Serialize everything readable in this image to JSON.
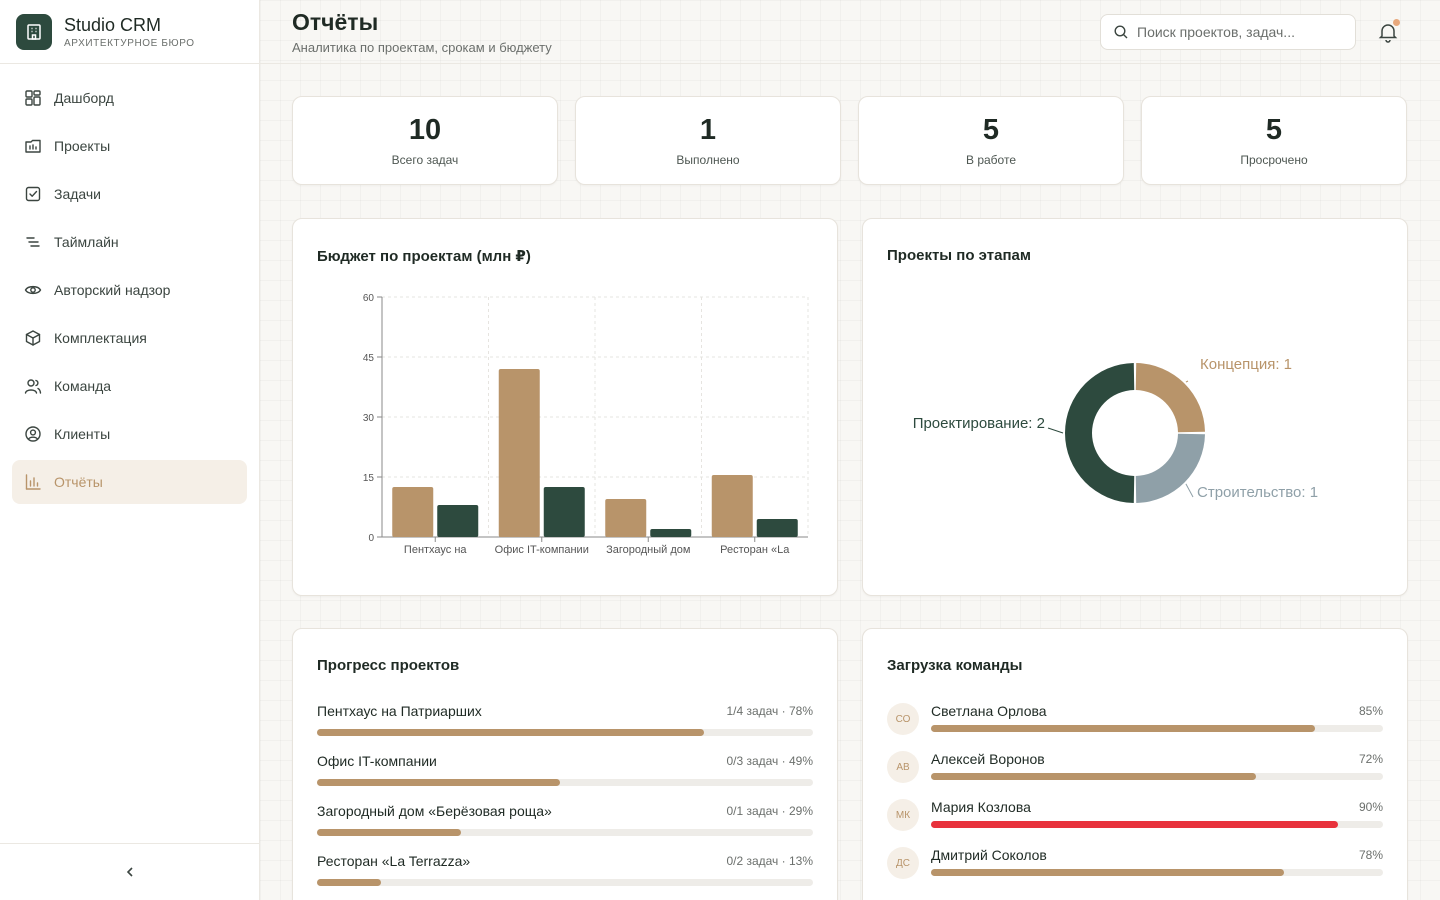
{
  "colors": {
    "accent": "#b8946a",
    "primary": "#2d4a3e",
    "slate": "#8fa0a8",
    "danger": "#e8323c",
    "accent_bg": "#f5efe7"
  },
  "brand": {
    "name": "Studio CRM",
    "subtitle": "АРХИТЕКТУРНОЕ БЮРО"
  },
  "sidebar": {
    "items": [
      {
        "label": "Дашборд",
        "icon": "dashboard-icon",
        "active": false
      },
      {
        "label": "Проекты",
        "icon": "folder-icon",
        "active": false
      },
      {
        "label": "Задачи",
        "icon": "checkbox-icon",
        "active": false
      },
      {
        "label": "Таймлайн",
        "icon": "timeline-icon",
        "active": false
      },
      {
        "label": "Авторский надзор",
        "icon": "eye-icon",
        "active": false
      },
      {
        "label": "Комплектация",
        "icon": "package-icon",
        "active": false
      },
      {
        "label": "Команда",
        "icon": "users-icon",
        "active": false
      },
      {
        "label": "Клиенты",
        "icon": "user-circle-icon",
        "active": false
      },
      {
        "label": "Отчёты",
        "icon": "bar-chart-icon",
        "active": true
      }
    ],
    "collapse_icon": "chevron-left-icon"
  },
  "header": {
    "title": "Отчёты",
    "subtitle": "Аналитика по проектам, срокам и бюджету",
    "search_placeholder": "Поиск проектов, задач..."
  },
  "stats": [
    {
      "value": "10",
      "label": "Всего задач"
    },
    {
      "value": "1",
      "label": "Выполнено"
    },
    {
      "value": "5",
      "label": "В работе"
    },
    {
      "value": "5",
      "label": "Просрочено"
    }
  ],
  "budget_card": {
    "title": "Бюджет по проектам (млн ₽)"
  },
  "stages_card": {
    "title": "Проекты по этапам"
  },
  "chart_data": [
    {
      "type": "bar",
      "title": "Бюджет по проектам (млн ₽)",
      "categories": [
        "Пентхаус на",
        "Офис IT-компании",
        "Загородный дом",
        "Ресторан «La"
      ],
      "series": [
        {
          "color": "#b8946a",
          "values": [
            12.5,
            42,
            9.5,
            15.5
          ]
        },
        {
          "color": "#2d4a3e",
          "values": [
            8,
            12.5,
            2,
            4.5
          ]
        }
      ],
      "yticks": [
        0,
        15,
        30,
        45,
        60
      ],
      "ylim": [
        0,
        60
      ],
      "grid": true
    },
    {
      "type": "pie",
      "title": "Проекты по этапам",
      "donut": true,
      "slices": [
        {
          "label": "Концепция: 1",
          "value": 1,
          "color": "#b8946a"
        },
        {
          "label": "Строительство: 1",
          "value": 1,
          "color": "#8fa0a8"
        },
        {
          "label": "Проектирование: 2",
          "value": 2,
          "color": "#2d4a3e"
        }
      ]
    }
  ],
  "progress": {
    "title": "Прогресс проектов",
    "items": [
      {
        "name": "Пентхаус на Патриарших",
        "meta": "1/4 задач · 78%",
        "pct": 78
      },
      {
        "name": "Офис IT-компании",
        "meta": "0/3 задач · 49%",
        "pct": 49
      },
      {
        "name": "Загородный дом «Берёзовая роща»",
        "meta": "0/1 задач · 29%",
        "pct": 29
      },
      {
        "name": "Ресторан «La Terrazza»",
        "meta": "0/2 задач · 13%",
        "pct": 13
      }
    ]
  },
  "team": {
    "title": "Загрузка команды",
    "members": [
      {
        "initials": "СО",
        "name": "Светлана Орлова",
        "pct_label": "85%",
        "pct": 85,
        "color": "#b8946a"
      },
      {
        "initials": "АВ",
        "name": "Алексей Воронов",
        "pct_label": "72%",
        "pct": 72,
        "color": "#b8946a"
      },
      {
        "initials": "МК",
        "name": "Мария Козлова",
        "pct_label": "90%",
        "pct": 90,
        "color": "#e8323c"
      },
      {
        "initials": "ДС",
        "name": "Дмитрий Соколов",
        "pct_label": "78%",
        "pct": 78,
        "color": "#b8946a"
      }
    ]
  }
}
